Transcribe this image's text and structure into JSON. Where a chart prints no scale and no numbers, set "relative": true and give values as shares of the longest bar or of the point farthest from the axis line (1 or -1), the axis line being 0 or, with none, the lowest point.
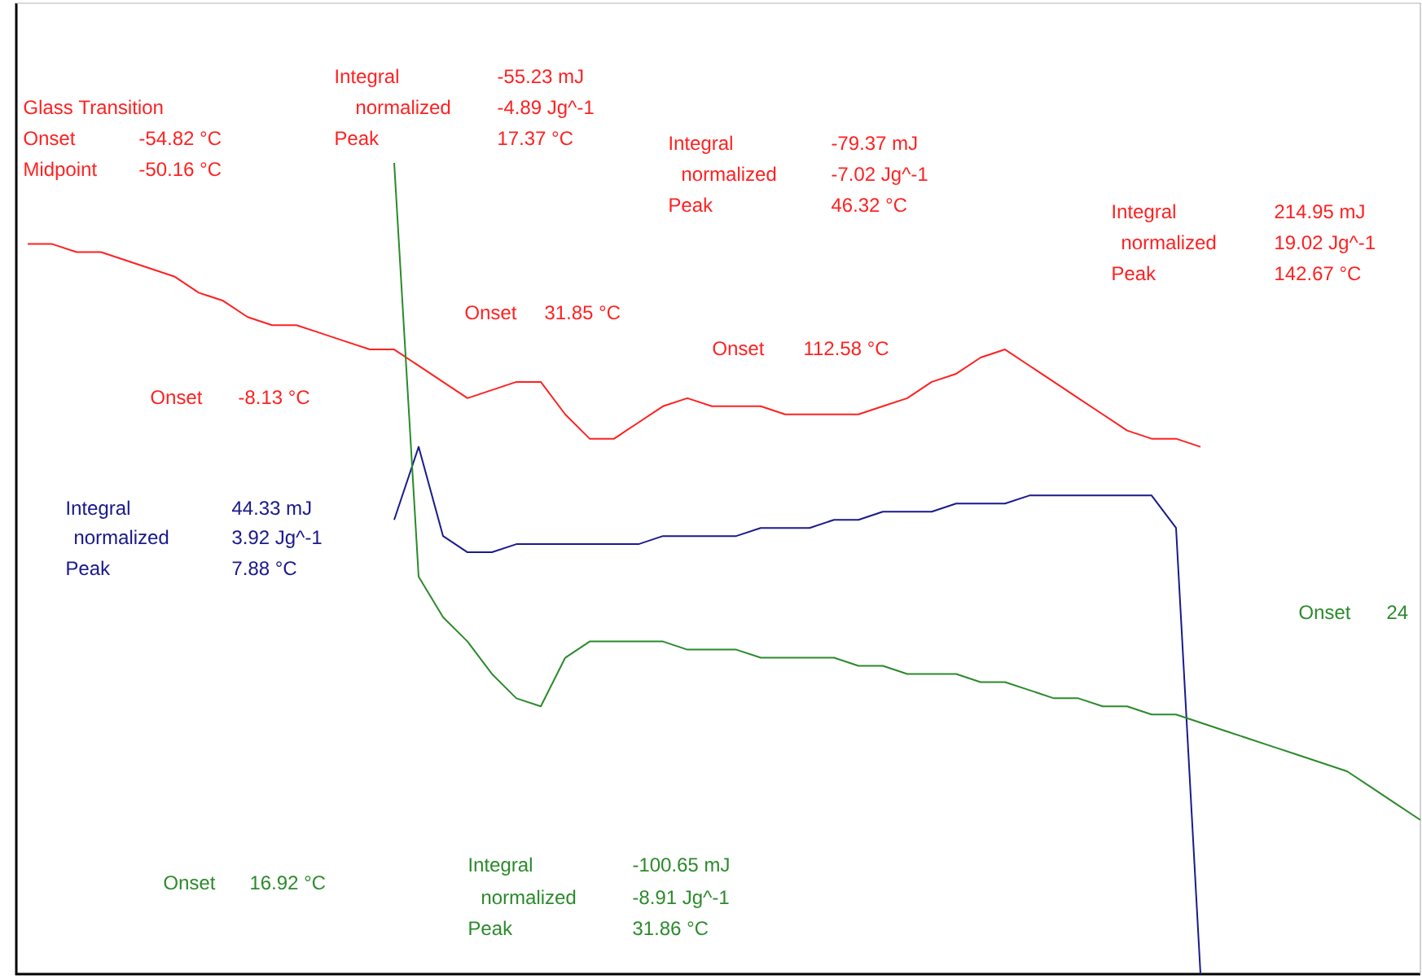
{
  "chart_data": {
    "type": "line",
    "relative": true,
    "categories": [
      null,
      null,
      null,
      null,
      null,
      null,
      null,
      null,
      null,
      null,
      null,
      null,
      null,
      null,
      null,
      null,
      null,
      null,
      null,
      null,
      null,
      null,
      null,
      null,
      null,
      null,
      null,
      null,
      null,
      null,
      null,
      null,
      null,
      null,
      null,
      null,
      null,
      null,
      null,
      null,
      null,
      null,
      null,
      null,
      null,
      null,
      null,
      null,
      null,
      null,
      null,
      null,
      null,
      null,
      null,
      null,
      null,
      null
    ],
    "series": [
      {
        "color": "#ff2020",
        "values": [
          0.9,
          0.9,
          0.89,
          0.89,
          0.88,
          0.87,
          0.86,
          0.84,
          0.83,
          0.81,
          0.8,
          0.8,
          0.79,
          0.78,
          0.77,
          0.77,
          0.75,
          0.73,
          0.71,
          0.72,
          0.73,
          0.73,
          0.69,
          0.66,
          0.66,
          0.68,
          0.7,
          0.71,
          0.7,
          0.7,
          0.7,
          0.69,
          0.69,
          0.69,
          0.69,
          0.7,
          0.71,
          0.73,
          0.74,
          0.76,
          0.77,
          0.75,
          0.73,
          0.71,
          0.69,
          0.67,
          0.66,
          0.66,
          0.65,
          null,
          null,
          null,
          null,
          null,
          null,
          null,
          null,
          null
        ]
      },
      {
        "color": "#1a1a8c",
        "values": [
          null,
          null,
          null,
          null,
          null,
          null,
          null,
          null,
          null,
          null,
          null,
          null,
          null,
          null,
          null,
          0.56,
          0.65,
          0.54,
          0.52,
          0.52,
          0.53,
          0.53,
          0.53,
          0.53,
          0.53,
          0.53,
          0.54,
          0.54,
          0.54,
          0.54,
          0.55,
          0.55,
          0.55,
          0.56,
          0.56,
          0.57,
          0.57,
          0.57,
          0.58,
          0.58,
          0.58,
          0.59,
          0.59,
          0.59,
          0.59,
          0.59,
          0.59,
          0.55,
          0,
          null,
          null,
          null,
          null,
          null,
          null,
          null,
          null,
          null
        ]
      },
      {
        "color": "#2a8a2a",
        "values": [
          null,
          null,
          null,
          null,
          null,
          null,
          null,
          null,
          null,
          null,
          null,
          null,
          null,
          null,
          null,
          1.0,
          0.49,
          0.44,
          0.41,
          0.37,
          0.34,
          0.33,
          0.39,
          0.41,
          0.41,
          0.41,
          0.41,
          0.4,
          0.4,
          0.4,
          0.39,
          0.39,
          0.39,
          0.39,
          0.38,
          0.38,
          0.37,
          0.37,
          0.37,
          0.36,
          0.36,
          0.35,
          0.34,
          0.34,
          0.33,
          0.33,
          0.32,
          0.32,
          0.31,
          0.3,
          0.29,
          0.28,
          0.27,
          0.26,
          0.25,
          0.23,
          0.21,
          0.19
        ]
      }
    ],
    "annotations": [
      "Glass Transition",
      "Onset",
      "-54.82 °C",
      "Midpoint",
      "-50.16 °C",
      "Integral",
      "-55.23 mJ",
      "normalized",
      "-4.89 Jg^-1",
      "Peak",
      "17.37 °C",
      "Integral",
      "-79.37 mJ",
      "normalized",
      "-7.02 Jg^-1",
      "Peak",
      "46.32 °C",
      "Integral",
      "214.95 mJ",
      "normalized",
      "19.02 Jg^-1",
      "Peak",
      "142.67 °C",
      "Onset",
      "31.85 °C",
      "Onset",
      "112.58 °C",
      "Onset",
      "-8.13 °C",
      "Integral",
      "44.33 mJ",
      "normalized",
      "3.92 Jg^-1",
      "Peak",
      "7.88 °C",
      "Onset",
      "24",
      "Onset",
      "16.92 °C",
      "Integral",
      "-100.65 mJ",
      "normalized",
      "-8.91 Jg^-1",
      "Peak",
      "31.86 °C"
    ]
  }
}
